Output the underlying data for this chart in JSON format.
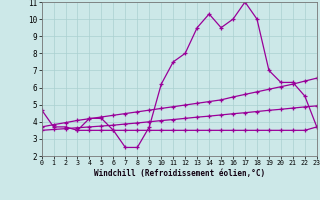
{
  "x": [
    0,
    1,
    2,
    3,
    4,
    5,
    6,
    7,
    8,
    9,
    10,
    11,
    12,
    13,
    14,
    15,
    16,
    17,
    18,
    19,
    20,
    21,
    22,
    23
  ],
  "y_main": [
    4.7,
    3.7,
    3.7,
    3.5,
    4.2,
    4.2,
    3.5,
    2.5,
    2.5,
    3.7,
    6.2,
    7.5,
    8.0,
    9.5,
    10.3,
    9.5,
    10.0,
    11.0,
    10.0,
    7.0,
    6.3,
    6.3,
    5.5,
    3.7
  ],
  "y_upper": [
    3.7,
    3.83,
    3.95,
    4.08,
    4.18,
    4.28,
    4.38,
    4.48,
    4.58,
    4.68,
    4.78,
    4.88,
    4.98,
    5.08,
    5.18,
    5.28,
    5.45,
    5.6,
    5.75,
    5.9,
    6.05,
    6.2,
    6.38,
    6.55
  ],
  "y_lower": [
    3.5,
    3.55,
    3.6,
    3.65,
    3.7,
    3.75,
    3.8,
    3.87,
    3.93,
    4.0,
    4.07,
    4.13,
    4.2,
    4.27,
    4.33,
    4.4,
    4.47,
    4.53,
    4.6,
    4.67,
    4.73,
    4.8,
    4.87,
    4.93
  ],
  "y_flat_x": [
    3,
    4,
    5,
    6,
    7,
    8,
    9,
    10,
    11,
    12,
    13,
    14,
    15,
    16,
    17,
    18,
    19,
    20,
    21,
    22,
    23
  ],
  "y_flat": [
    3.5,
    3.5,
    3.5,
    3.5,
    3.5,
    3.5,
    3.5,
    3.5,
    3.5,
    3.5,
    3.5,
    3.5,
    3.5,
    3.5,
    3.5,
    3.5,
    3.5,
    3.5,
    3.5,
    3.5,
    3.7
  ],
  "bg_color": "#cce8e8",
  "grid_color": "#aad0d0",
  "line_color": "#990099",
  "xlabel": "Windchill (Refroidissement éolien,°C)",
  "ylim": [
    2,
    11
  ],
  "xlim": [
    0,
    23
  ],
  "yticks": [
    2,
    3,
    4,
    5,
    6,
    7,
    8,
    9,
    10,
    11
  ],
  "xticks": [
    0,
    1,
    2,
    3,
    4,
    5,
    6,
    7,
    8,
    9,
    10,
    11,
    12,
    13,
    14,
    15,
    16,
    17,
    18,
    19,
    20,
    21,
    22,
    23
  ]
}
